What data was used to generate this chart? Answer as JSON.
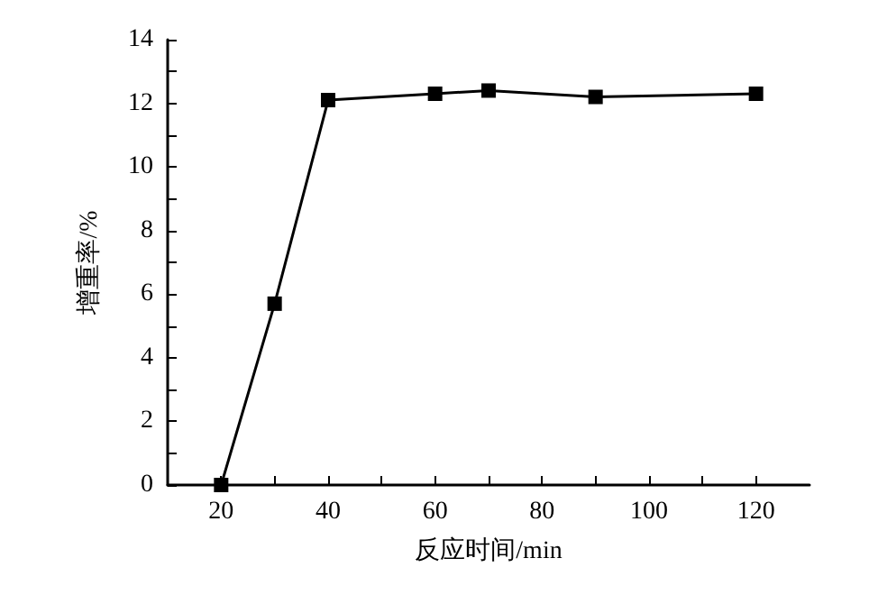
{
  "chart_data": {
    "type": "line",
    "xlabel": "反应时间/min",
    "ylabel": "增重率/%",
    "x": [
      20,
      30,
      40,
      60,
      70,
      90,
      120
    ],
    "series": [
      {
        "color": "#000000",
        "values": [
          0,
          5.7,
          12.1,
          12.3,
          12.4,
          12.2,
          12.3
        ]
      }
    ],
    "xlim": [
      10,
      130
    ],
    "xticks": [
      20,
      {
        "value": 30,
        "label": null
      },
      40,
      {
        "value": 50,
        "label": null
      },
      60,
      {
        "value": 70,
        "label": null
      },
      80,
      {
        "value": 90,
        "label": null
      },
      100,
      {
        "value": 110,
        "label": null
      },
      120
    ],
    "ylim": [
      0,
      14
    ],
    "yticks": [
      0,
      {
        "value": 1,
        "label": null
      },
      2,
      {
        "value": 3,
        "label": null
      },
      4,
      {
        "value": 5,
        "label": null
      },
      6,
      {
        "value": 7,
        "label": null
      },
      8,
      {
        "value": 9,
        "label": null
      },
      10,
      {
        "value": 11,
        "label": null
      },
      12,
      {
        "value": 13,
        "label": null
      },
      14
    ],
    "grid": false,
    "marker": "square",
    "line_style": "solid"
  }
}
